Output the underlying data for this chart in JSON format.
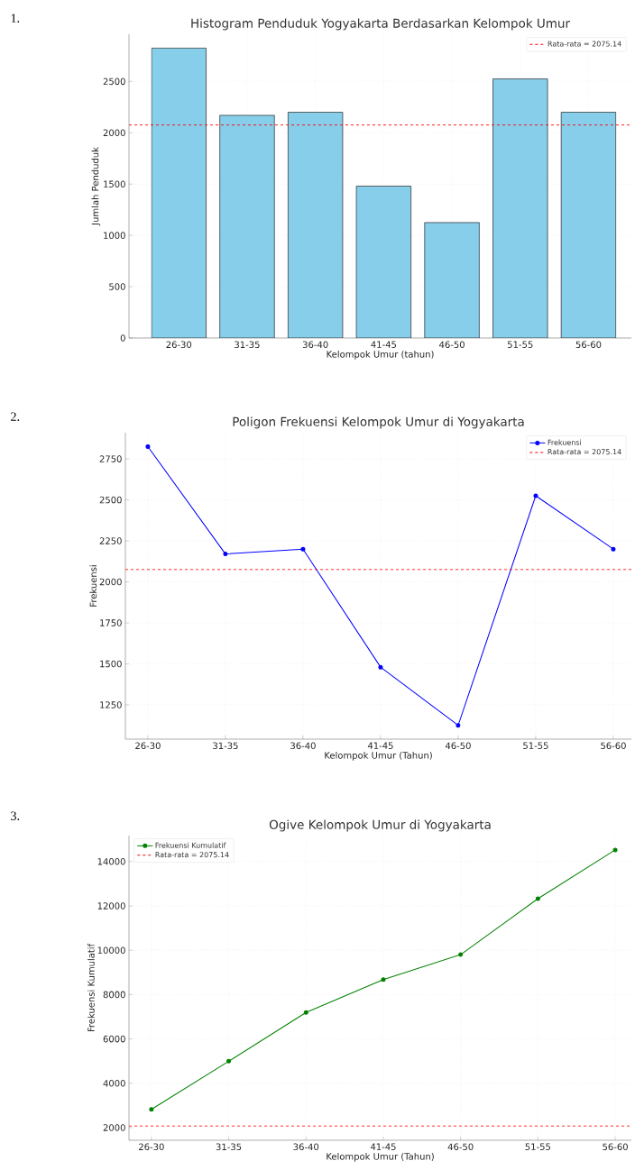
{
  "chart_data": [
    {
      "type": "bar",
      "title": "Histogram Penduduk Yogyakarta Berdasarkan Kelompok Umur",
      "xlabel": "Kelompok Umur (tahun)",
      "ylabel": "Jumlah Penduduk",
      "annotations": [
        "1."
      ],
      "categories": [
        "26-30",
        "31-35",
        "36-40",
        "41-45",
        "46-50",
        "51-55",
        "56-60"
      ],
      "series": [
        {
          "color": "#87ceeb",
          "values": [
            2825,
            2170,
            2200,
            1480,
            1125,
            2525,
            2200
          ]
        }
      ],
      "ylim": [
        0,
        2960
      ],
      "yticks": [
        0,
        500,
        1000,
        1500,
        2000,
        2500
      ],
      "grid": true,
      "legend": "top right",
      "ref_lines": [
        {
          "axis": "y",
          "value": 2075.14,
          "label": "Rata-rata = 2075.14",
          "color": "#ff0000",
          "line_style": "dashed"
        }
      ]
    },
    {
      "type": "line",
      "title": "Poligon Frekuensi Kelompok Umur di Yogyakarta",
      "xlabel": "Kelompok Umur (Tahun)",
      "ylabel": "Frekuensi",
      "annotations": [
        "2."
      ],
      "categories": [
        "26-30",
        "31-35",
        "36-40",
        "41-45",
        "46-50",
        "51-55",
        "56-60"
      ],
      "series": [
        {
          "name": "Frekuensi",
          "color": "#0000ff",
          "values": [
            2825,
            2170,
            2200,
            1480,
            1125,
            2525,
            2200
          ]
        }
      ],
      "ylim": [
        1041,
        2910
      ],
      "yticks": [
        1250,
        1500,
        1750,
        2000,
        2250,
        2500,
        2750
      ],
      "grid": true,
      "legend": "top right",
      "marker": "circle",
      "ref_lines": [
        {
          "axis": "y",
          "value": 2075.14,
          "label": "Rata-rata = 2075.14",
          "color": "#ff0000",
          "line_style": "dashed"
        }
      ]
    },
    {
      "type": "line",
      "title": "Ogive Kelompok Umur di Yogyakarta",
      "xlabel": "Kelompok Umur (Tahun)",
      "ylabel": "Frekuensi Kumulatif",
      "annotations": [
        "3."
      ],
      "categories": [
        "26-30",
        "31-35",
        "36-40",
        "41-45",
        "46-50",
        "51-55",
        "56-60"
      ],
      "series": [
        {
          "name": "Frekuensi Kumulatif",
          "color": "#008000",
          "values": [
            2825,
            4995,
            7195,
            8675,
            9800,
            12325,
            14525
          ]
        }
      ],
      "ylim": [
        1431,
        15171
      ],
      "yticks": [
        2000,
        4000,
        6000,
        8000,
        10000,
        12000,
        14000
      ],
      "grid": true,
      "legend": "top left",
      "marker": "circle",
      "ref_lines": [
        {
          "axis": "y",
          "value": 2075.14,
          "label": "Rata-rata = 2075.14",
          "color": "#ff0000",
          "line_style": "dashed"
        }
      ]
    }
  ]
}
